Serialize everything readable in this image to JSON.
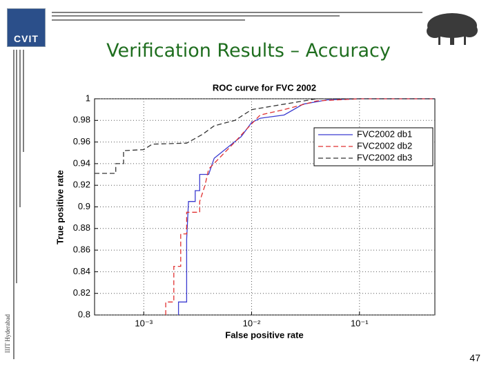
{
  "logo": "CVIT",
  "slide_title": "Verification Results – Accuracy",
  "side_label": "IIIT Hyderabad",
  "page_number": "47",
  "chart_data": {
    "type": "line",
    "title": "ROC curve for FVC 2002",
    "x_label": "False positive rate",
    "y_label": "True positive rate",
    "x_scale": "log",
    "grid": true,
    "legend": "upper right",
    "xlim": [
      0.00035,
      0.5
    ],
    "ylim": [
      0.8,
      1
    ],
    "xticks": [
      {
        "value": 0.001,
        "label": "10⁻³"
      },
      {
        "value": 0.01,
        "label": "10⁻²"
      },
      {
        "value": 0.1,
        "label": "10⁻¹"
      }
    ],
    "yticks": [
      0.8,
      0.82,
      0.84,
      0.86,
      0.88,
      0.9,
      0.92,
      0.94,
      0.96,
      0.98,
      1
    ],
    "series": [
      {
        "name": "FVC2002 db1",
        "color": "#3a3ad0",
        "dash": "solid",
        "x": [
          0.0021,
          0.0021,
          0.0025,
          0.0025,
          0.0026,
          0.003,
          0.003,
          0.0033,
          0.0033,
          0.004,
          0.0045,
          0.006,
          0.008,
          0.01,
          0.012,
          0.02,
          0.03,
          0.05,
          0.1,
          0.5
        ],
        "values": [
          0.8,
          0.812,
          0.812,
          0.87,
          0.905,
          0.905,
          0.915,
          0.915,
          0.93,
          0.93,
          0.945,
          0.955,
          0.965,
          0.978,
          0.982,
          0.985,
          0.995,
          0.999,
          1,
          1
        ]
      },
      {
        "name": "FVC2002 db2",
        "color": "#e03030",
        "dash": "dashed",
        "x": [
          0.0016,
          0.0016,
          0.0019,
          0.0019,
          0.0022,
          0.0022,
          0.0025,
          0.0025,
          0.0033,
          0.0033,
          0.0037,
          0.004,
          0.005,
          0.007,
          0.009,
          0.012,
          0.02,
          0.04,
          0.1,
          0.5
        ],
        "values": [
          0.8,
          0.812,
          0.812,
          0.845,
          0.845,
          0.875,
          0.875,
          0.895,
          0.895,
          0.905,
          0.92,
          0.935,
          0.945,
          0.96,
          0.972,
          0.985,
          0.99,
          0.998,
          1,
          1
        ]
      },
      {
        "name": "FVC2002 db3",
        "color": "#333333",
        "dash": "dashed",
        "x": [
          0.00035,
          0.00055,
          0.00055,
          0.00065,
          0.00065,
          0.001,
          0.0012,
          0.0025,
          0.0035,
          0.0045,
          0.007,
          0.01,
          0.02,
          0.04,
          0.5
        ],
        "values": [
          0.931,
          0.931,
          0.94,
          0.94,
          0.952,
          0.953,
          0.958,
          0.959,
          0.967,
          0.975,
          0.98,
          0.99,
          0.995,
          1,
          1
        ]
      }
    ]
  }
}
